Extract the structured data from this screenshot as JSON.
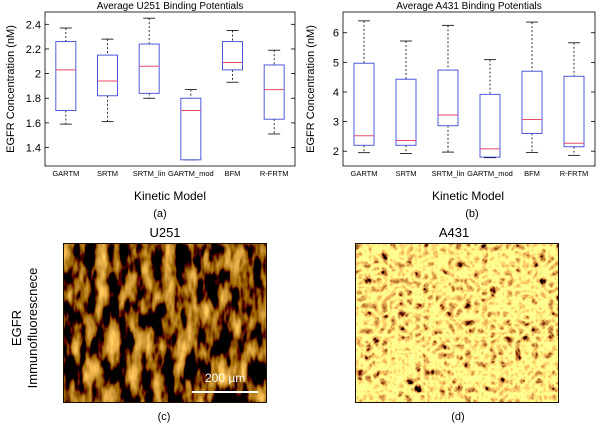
{
  "chart_data": [
    {
      "type": "boxplot",
      "title": "Average U251 Binding Potentials",
      "xlabel": "Kinetic Model",
      "ylabel": "EGFR Concentration (nM)",
      "ylim": [
        1.25,
        2.5
      ],
      "yticks": [
        "1.4",
        "1.6",
        "1.8",
        "2",
        "2.2",
        "2.4"
      ],
      "categories": [
        "GARTM",
        "SRTM",
        "SRTM_lin",
        "GARTM_mod",
        "BFM",
        "R-FRTM"
      ],
      "boxes": [
        {
          "whisker_low": 1.59,
          "q1": 1.7,
          "median": 2.03,
          "q3": 2.26,
          "whisker_high": 2.37
        },
        {
          "whisker_low": 1.61,
          "q1": 1.82,
          "median": 1.94,
          "q3": 2.15,
          "whisker_high": 2.28
        },
        {
          "whisker_low": 1.8,
          "q1": 1.84,
          "median": 2.06,
          "q3": 2.24,
          "whisker_high": 2.45
        },
        {
          "whisker_low": 1.3,
          "q1": 1.3,
          "median": 1.7,
          "q3": 1.8,
          "whisker_high": 1.87
        },
        {
          "whisker_low": 1.93,
          "q1": 2.03,
          "median": 2.09,
          "q3": 2.26,
          "whisker_high": 2.35
        },
        {
          "whisker_low": 1.51,
          "q1": 1.63,
          "median": 1.87,
          "q3": 2.07,
          "whisker_high": 2.19
        }
      ],
      "grid": false,
      "colors": {
        "box": "#3b48d6",
        "median": "#e8486a",
        "whisker": "#000000",
        "axis": "#000000"
      }
    },
    {
      "type": "boxplot",
      "title": "Average A431 Binding Potentials",
      "xlabel": "Kinetic Model",
      "ylabel": "EGFR Concentration (nM)",
      "ylim": [
        1.5,
        6.7
      ],
      "yticks": [
        "2",
        "3",
        "4",
        "5",
        "6"
      ],
      "categories": [
        "GARTM",
        "SRTM",
        "SRTM_lin",
        "GARTM_mod",
        "BFM",
        "R-FRTM"
      ],
      "boxes": [
        {
          "whisker_low": 1.95,
          "q1": 2.2,
          "median": 2.52,
          "q3": 4.97,
          "whisker_high": 6.4
        },
        {
          "whisker_low": 1.92,
          "q1": 2.2,
          "median": 2.36,
          "q3": 4.43,
          "whisker_high": 5.72
        },
        {
          "whisker_low": 1.97,
          "q1": 2.86,
          "median": 3.22,
          "q3": 4.74,
          "whisker_high": 6.25
        },
        {
          "whisker_low": 1.78,
          "q1": 1.8,
          "median": 2.08,
          "q3": 3.92,
          "whisker_high": 5.09
        },
        {
          "whisker_low": 1.96,
          "q1": 2.6,
          "median": 3.07,
          "q3": 4.7,
          "whisker_high": 6.36
        },
        {
          "whisker_low": 1.86,
          "q1": 2.15,
          "median": 2.27,
          "q3": 4.53,
          "whisker_high": 5.66
        }
      ],
      "grid": false,
      "colors": {
        "box": "#3b48d6",
        "median": "#e8486a",
        "whisker": "#000000",
        "axis": "#000000"
      }
    }
  ],
  "panel_labels": {
    "a": "(a)",
    "b": "(b)",
    "c": "(c)",
    "d": "(d)"
  },
  "images": {
    "left_title": "U251",
    "right_title": "A431",
    "side_label_line1": "EGFR",
    "side_label_line2": "Immunofluorescnece",
    "scale_bar_label": "200 µm"
  }
}
